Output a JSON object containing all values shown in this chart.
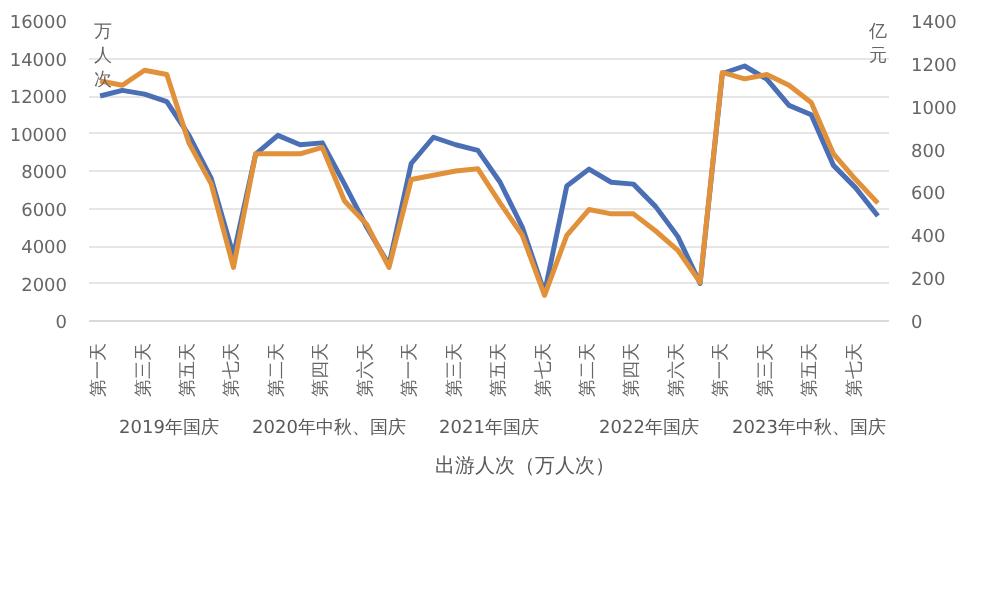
{
  "chart_data": {
    "type": "line",
    "ylabel": "万人次",
    "y2label": "亿元",
    "categories": [
      "第一天",
      null,
      "第三天",
      null,
      "第五天",
      null,
      "第七天",
      null,
      "第二天",
      null,
      "第四天",
      null,
      "第六天",
      null,
      "第一天",
      null,
      "第三天",
      null,
      "第五天",
      null,
      "第七天",
      null,
      "第二天",
      null,
      "第四天",
      null,
      "第六天",
      null,
      "第一天",
      null,
      "第三天",
      null,
      "第五天",
      null,
      "第七天",
      null
    ],
    "series": [
      {
        "name": "出游人次（万人次）",
        "color": "#4a6fb5",
        "values": [
          12000,
          12300,
          12100,
          11700,
          9900,
          7600,
          3500,
          8900,
          9900,
          9400,
          9500,
          7300,
          5000,
          3000,
          8400,
          9800,
          9400,
          9100,
          7400,
          5000,
          1500,
          7200,
          8100,
          7400,
          7300,
          6100,
          4500,
          2000,
          13200,
          13600,
          12900,
          11500,
          11000,
          8300,
          7100,
          5600
        ]
      },
      {
        "color": "#e0913a",
        "axis": "y2",
        "values": [
          1120,
          1100,
          1170,
          1150,
          830,
          640,
          250,
          780,
          780,
          780,
          810,
          560,
          450,
          250,
          660,
          680,
          700,
          710,
          550,
          400,
          120,
          400,
          520,
          500,
          500,
          420,
          330,
          180,
          1160,
          1130,
          1150,
          1100,
          1020,
          780,
          660,
          550
        ]
      }
    ],
    "ylim": [
      0,
      16000
    ],
    "yticks": [
      0,
      2000,
      4000,
      6000,
      8000,
      10000,
      12000,
      14000,
      16000
    ],
    "y2lim": [
      0,
      1400
    ],
    "y2ticks": [
      0,
      200,
      400,
      600,
      800,
      1000,
      1200,
      1400
    ],
    "annotations": [
      "2019年国庆",
      "2020年中秋、国庆",
      "2021年国庆",
      "2022年国庆",
      "2023年中秋、国庆"
    ],
    "grid": "y",
    "legend": "bottom",
    "marker": "none",
    "line_style": "solid"
  }
}
